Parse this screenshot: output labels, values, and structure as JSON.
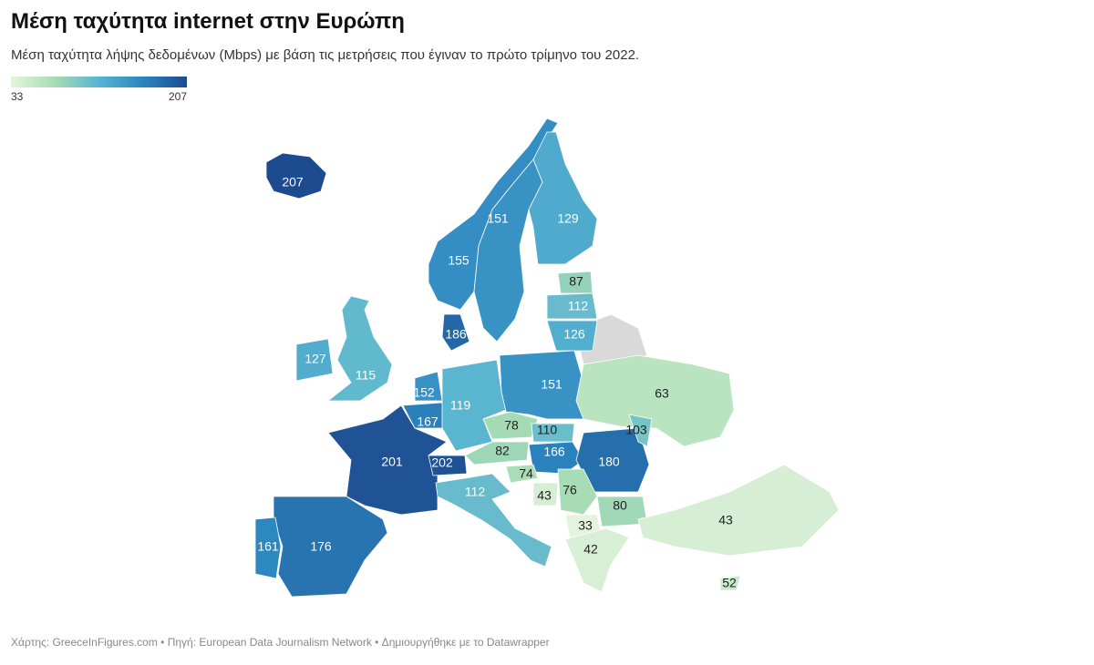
{
  "header": {
    "title": "Μέση ταχύτητα internet στην Ευρώπη",
    "subtitle": "Μέση ταχύτητα λήψης δεδομένων (Mbps) με βάση τις μετρήσεις που έγιναν το πρώτο τρίμηνο του 2022."
  },
  "legend": {
    "min": 33,
    "max": 207
  },
  "regions": [
    {
      "value": 207
    },
    {
      "value": 155
    },
    {
      "value": 151
    },
    {
      "value": 129
    },
    {
      "value": 87
    },
    {
      "value": 112
    },
    {
      "value": 126
    },
    {
      "value": 186
    },
    {
      "value": 127
    },
    {
      "value": 115
    },
    {
      "value": 152
    },
    {
      "value": 167
    },
    {
      "value": 119
    },
    {
      "value": 151
    },
    {
      "value": 63
    },
    {
      "value": 78
    },
    {
      "value": 110
    },
    {
      "value": 82
    },
    {
      "value": 166
    },
    {
      "value": 180
    },
    {
      "value": 103
    },
    {
      "value": 201
    },
    {
      "value": 202
    },
    {
      "value": 74
    },
    {
      "value": 43
    },
    {
      "value": 76
    },
    {
      "value": 80
    },
    {
      "value": 33
    },
    {
      "value": 42
    },
    {
      "value": 43
    },
    {
      "value": 52
    },
    {
      "value": 112
    },
    {
      "value": 176
    },
    {
      "value": 161
    }
  ],
  "footer": "Χάρτης: GreeceInFigures.com • Πηγή: European Data Journalism Network • Δημιουργήθηκε με το Datawrapper"
}
